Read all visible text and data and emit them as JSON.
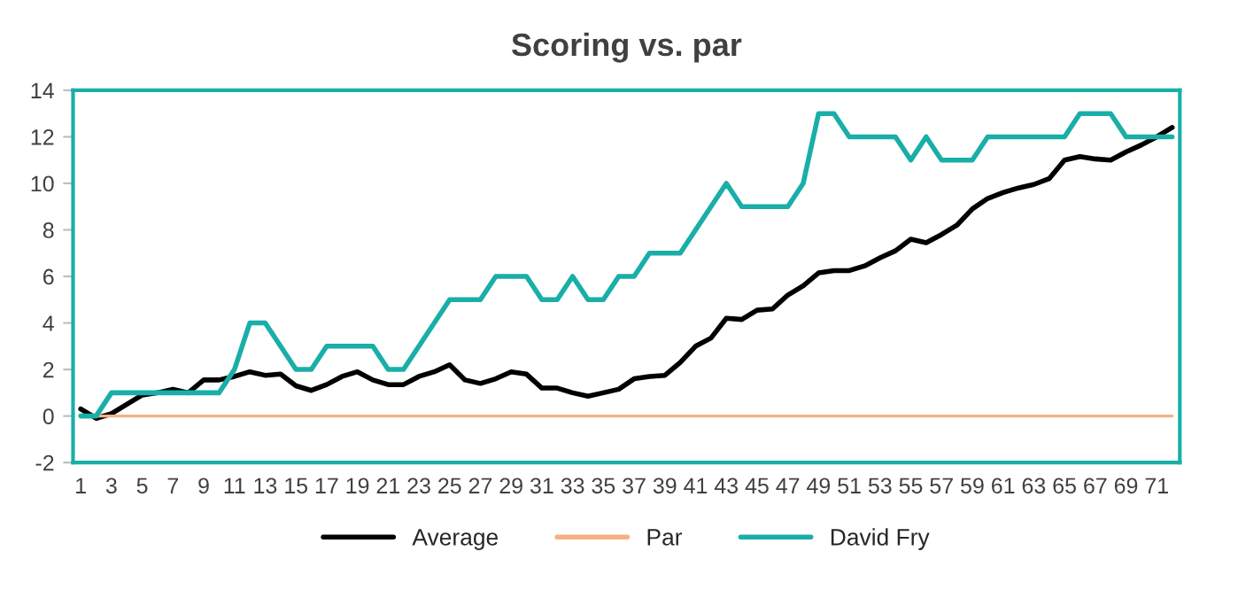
{
  "chart_data": {
    "type": "line",
    "title": "Scoring vs. par",
    "categories": [
      "1",
      null,
      "3",
      null,
      "5",
      null,
      "7",
      null,
      "9",
      null,
      "11",
      null,
      "13",
      null,
      "15",
      null,
      "17",
      null,
      "19",
      null,
      "21",
      null,
      "23",
      null,
      "25",
      null,
      "27",
      null,
      "29",
      null,
      "31",
      null,
      "33",
      null,
      "35",
      null,
      "37",
      null,
      "39",
      null,
      "41",
      null,
      "43",
      null,
      "45",
      null,
      "47",
      null,
      "49",
      null,
      "51",
      null,
      "53",
      null,
      "55",
      null,
      "57",
      null,
      "59",
      null,
      "61",
      null,
      "63",
      null,
      "65",
      null,
      "67",
      null,
      "69",
      null,
      "71",
      null
    ],
    "series": [
      {
        "name": "Average",
        "color": "#000000",
        "values": [
          0.3,
          -0.1,
          0.1,
          0.5,
          0.9,
          1.0,
          1.15,
          1.0,
          1.55,
          1.55,
          1.7,
          1.9,
          1.75,
          1.8,
          1.3,
          1.1,
          1.35,
          1.7,
          1.9,
          1.55,
          1.35,
          1.35,
          1.7,
          1.9,
          2.2,
          1.55,
          1.4,
          1.6,
          1.9,
          1.8,
          1.2,
          1.2,
          1.0,
          0.85,
          1.0,
          1.15,
          1.6,
          1.7,
          1.75,
          2.3,
          3.0,
          3.35,
          4.2,
          4.15,
          4.55,
          4.6,
          5.2,
          5.6,
          6.15,
          6.25,
          6.25,
          6.45,
          6.8,
          7.1,
          7.6,
          7.45,
          7.8,
          8.2,
          8.9,
          9.35,
          9.6,
          9.8,
          9.95,
          10.2,
          11.0,
          11.15,
          11.05,
          11.0,
          11.35,
          11.65,
          12.0,
          12.4
        ]
      },
      {
        "name": "Par",
        "color": "#f4b183",
        "values": [
          0,
          0,
          0,
          0,
          0,
          0,
          0,
          0,
          0,
          0,
          0,
          0,
          0,
          0,
          0,
          0,
          0,
          0,
          0,
          0,
          0,
          0,
          0,
          0,
          0,
          0,
          0,
          0,
          0,
          0,
          0,
          0,
          0,
          0,
          0,
          0,
          0,
          0,
          0,
          0,
          0,
          0,
          0,
          0,
          0,
          0,
          0,
          0,
          0,
          0,
          0,
          0,
          0,
          0,
          0,
          0,
          0,
          0,
          0,
          0,
          0,
          0,
          0,
          0,
          0,
          0,
          0,
          0,
          0,
          0,
          0,
          0
        ]
      },
      {
        "name": "David Fry",
        "color": "#1aaea8",
        "values": [
          0,
          0,
          1,
          1,
          1,
          1,
          1,
          1,
          1,
          1,
          2,
          4,
          4,
          3,
          2,
          2,
          3,
          3,
          3,
          3,
          2,
          2,
          3,
          4,
          5,
          5,
          5,
          6,
          6,
          6,
          5,
          5,
          6,
          5,
          5,
          6,
          6,
          7,
          7,
          7,
          8,
          9,
          10,
          9,
          9,
          9,
          9,
          10,
          13,
          13,
          12,
          12,
          12,
          12,
          11,
          12,
          11,
          11,
          11,
          12,
          12,
          12,
          12,
          12,
          12,
          13,
          13,
          13,
          12,
          12,
          12,
          12
        ]
      }
    ],
    "ylim": [
      -2,
      14
    ],
    "yticks": [
      -2,
      0,
      2,
      4,
      6,
      8,
      10,
      12,
      14
    ],
    "grid": false,
    "legend": "bottom",
    "marker": "none",
    "line_style": "solid"
  }
}
